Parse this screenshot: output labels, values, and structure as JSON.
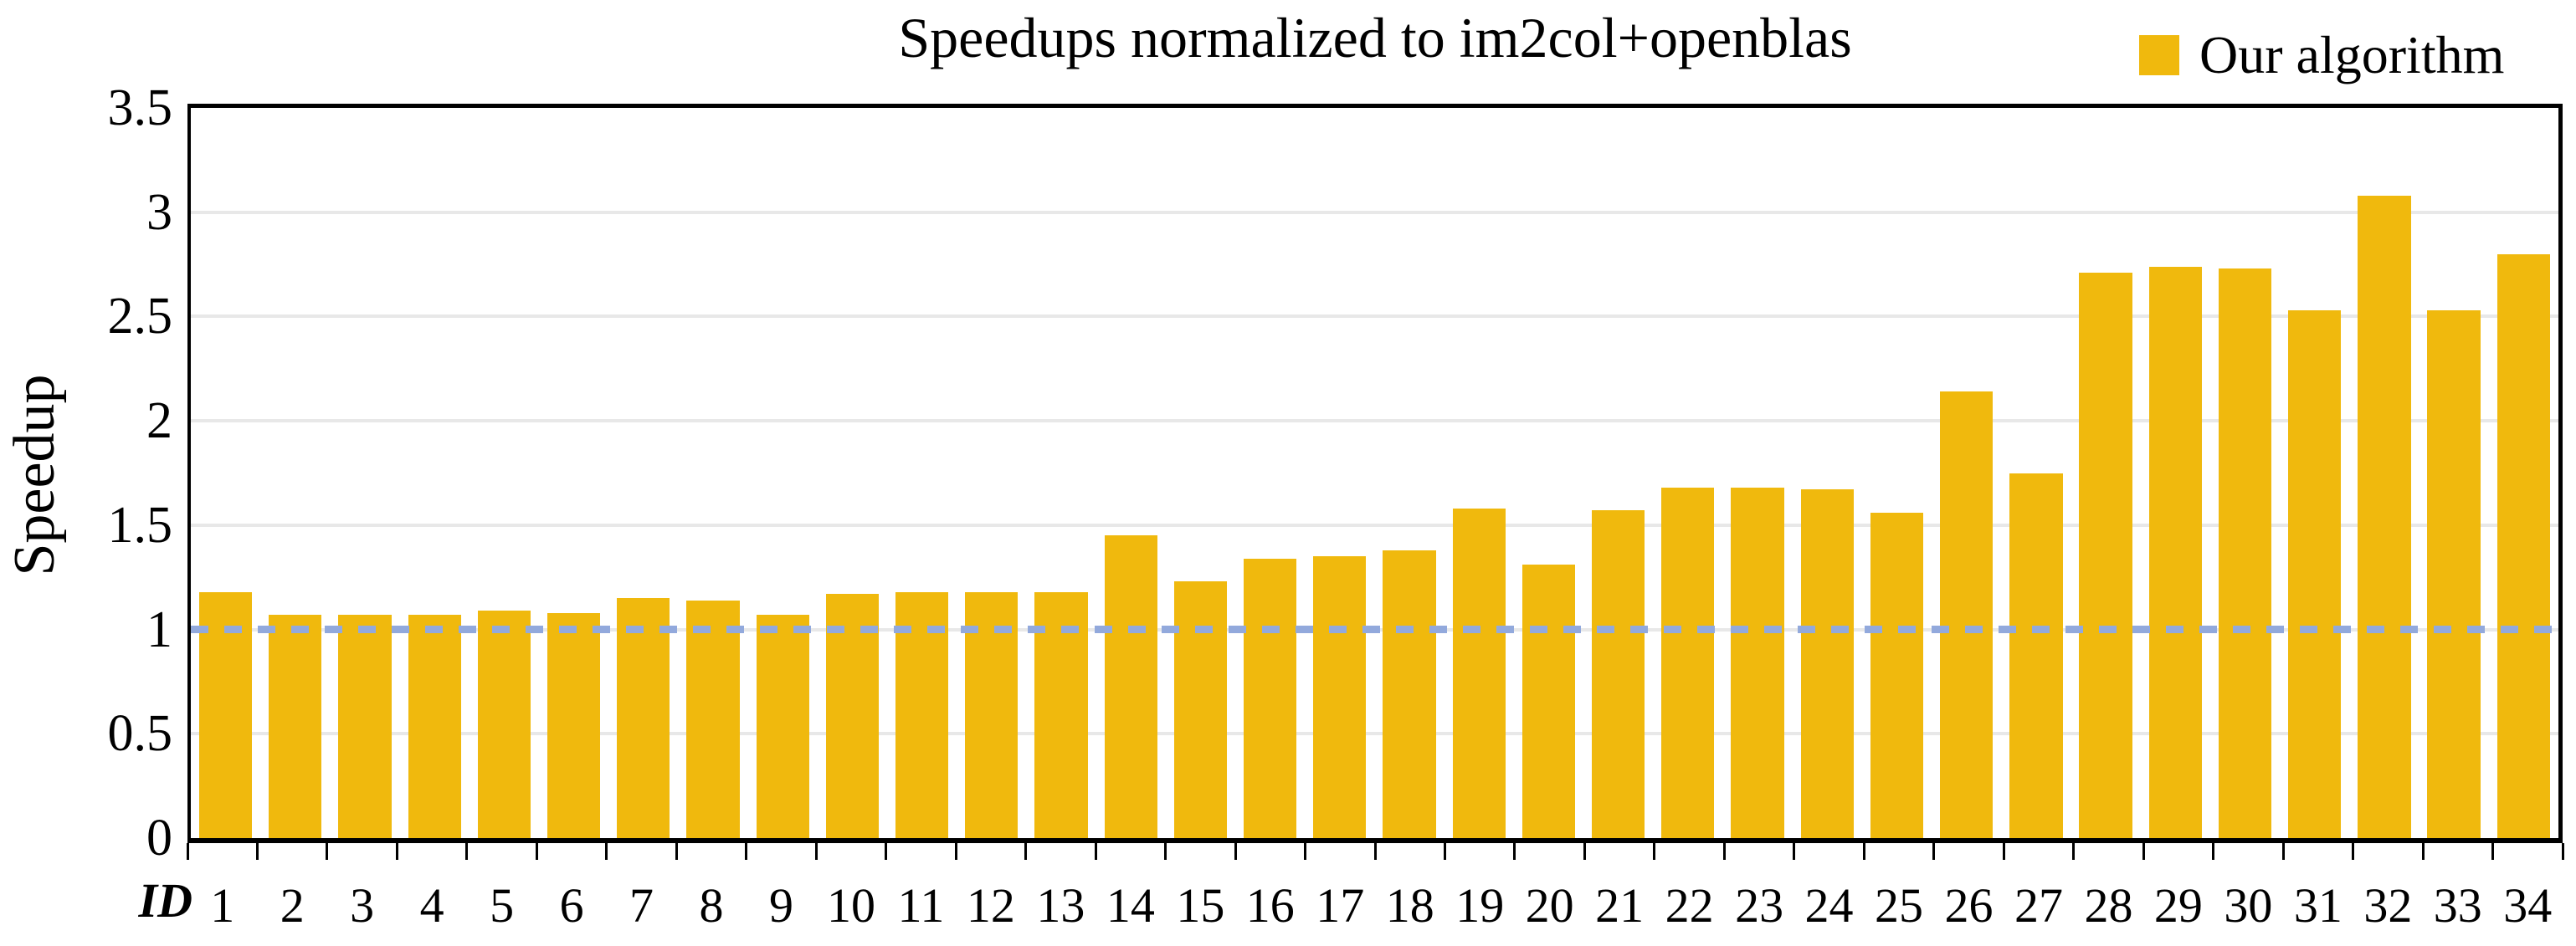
{
  "chart_data": {
    "type": "bar",
    "title": "Speedups normalized to im2col+openblas",
    "series_name": "Our algorithm",
    "xlabel": "ID",
    "ylabel": "Speedup",
    "categories": [
      "1",
      "2",
      "3",
      "4",
      "5",
      "6",
      "7",
      "8",
      "9",
      "10",
      "11",
      "12",
      "13",
      "14",
      "15",
      "16",
      "17",
      "18",
      "19",
      "20",
      "21",
      "22",
      "23",
      "24",
      "25",
      "26",
      "27",
      "28",
      "29",
      "30",
      "31",
      "32",
      "33",
      "34"
    ],
    "values": [
      1.18,
      1.07,
      1.07,
      1.07,
      1.09,
      1.08,
      1.15,
      1.14,
      1.07,
      1.17,
      1.18,
      1.18,
      1.18,
      1.45,
      1.23,
      1.34,
      1.35,
      1.38,
      1.58,
      1.31,
      1.57,
      1.68,
      1.68,
      1.67,
      1.56,
      2.14,
      1.75,
      2.71,
      2.74,
      2.73,
      2.53,
      3.08,
      2.53,
      2.8
    ],
    "ylim": [
      0,
      3.5
    ],
    "y_tick_labels": [
      "3.5",
      "3",
      "2.5",
      "2",
      "1.5",
      "1",
      "0.5",
      "0"
    ],
    "y_tick_values": [
      3.5,
      3,
      2.5,
      2,
      1.5,
      1,
      0.5,
      0
    ],
    "gridline_values": [
      3,
      2.5,
      2,
      1.5,
      1,
      0.5
    ],
    "reference_line": {
      "y": 1,
      "style": "dashed",
      "color": "#92A9DC"
    },
    "bar_color": "#F0B90D",
    "grid": true,
    "legend_position": "top-right"
  }
}
